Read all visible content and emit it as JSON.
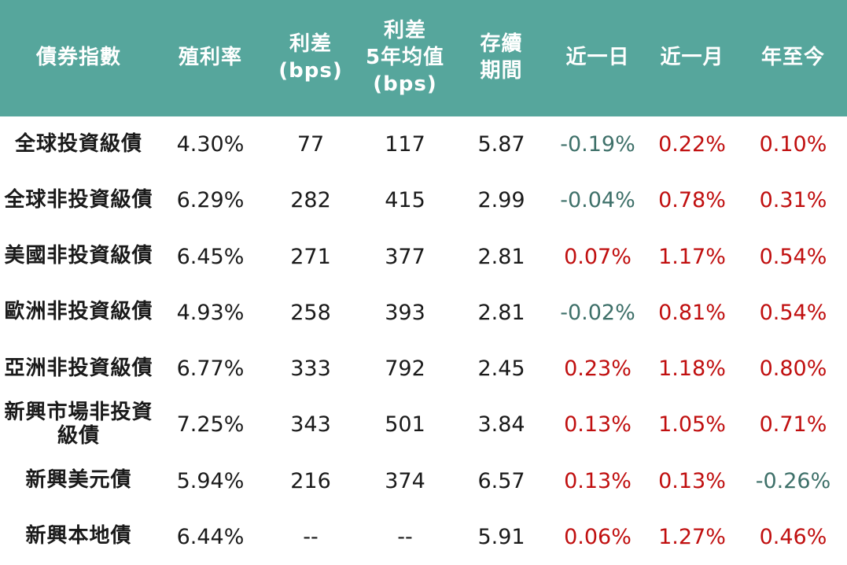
{
  "colors": {
    "header_bg": "#56a69c",
    "header_text": "#ffffff",
    "body_text": "#1a1a1a",
    "positive": "#c00f0f",
    "negative": "#3e7069"
  },
  "chart_data": {
    "type": "table",
    "title": "",
    "columns": [
      {
        "id": "index_name",
        "label_lines": [
          "債券指數"
        ]
      },
      {
        "id": "yield",
        "label_lines": [
          "殖利率"
        ]
      },
      {
        "id": "spread_bps",
        "label_lines": [
          "利差",
          "(bps)"
        ]
      },
      {
        "id": "spread_5y_avg_bps",
        "label_lines": [
          "利差",
          "5年均值",
          "(bps)"
        ]
      },
      {
        "id": "duration",
        "label_lines": [
          "存續",
          "期間"
        ]
      },
      {
        "id": "chg_1d",
        "label_lines": [
          "近一日"
        ]
      },
      {
        "id": "chg_1m",
        "label_lines": [
          "近一月"
        ]
      },
      {
        "id": "chg_ytd",
        "label_lines": [
          "年至今"
        ]
      }
    ],
    "change_column_ids": [
      "chg_1d",
      "chg_1m",
      "chg_ytd"
    ],
    "rows": [
      {
        "index_name": "全球投資級債",
        "yield": "4.30%",
        "spread_bps": "77",
        "spread_5y_avg_bps": "117",
        "duration": "5.87",
        "chg_1d": "-0.19%",
        "chg_1m": "0.22%",
        "chg_ytd": "0.10%"
      },
      {
        "index_name": "全球非投資級債",
        "yield": "6.29%",
        "spread_bps": "282",
        "spread_5y_avg_bps": "415",
        "duration": "2.99",
        "chg_1d": "-0.04%",
        "chg_1m": "0.78%",
        "chg_ytd": "0.31%"
      },
      {
        "index_name": "美國非投資級債",
        "yield": "6.45%",
        "spread_bps": "271",
        "spread_5y_avg_bps": "377",
        "duration": "2.81",
        "chg_1d": "0.07%",
        "chg_1m": "1.17%",
        "chg_ytd": "0.54%"
      },
      {
        "index_name": "歐洲非投資級債",
        "yield": "4.93%",
        "spread_bps": "258",
        "spread_5y_avg_bps": "393",
        "duration": "2.81",
        "chg_1d": "-0.02%",
        "chg_1m": "0.81%",
        "chg_ytd": "0.54%"
      },
      {
        "index_name": "亞洲非投資級債",
        "yield": "6.77%",
        "spread_bps": "333",
        "spread_5y_avg_bps": "792",
        "duration": "2.45",
        "chg_1d": "0.23%",
        "chg_1m": "1.18%",
        "chg_ytd": "0.80%"
      },
      {
        "index_name": "新興市場非投資\n級債",
        "yield": "7.25%",
        "spread_bps": "343",
        "spread_5y_avg_bps": "501",
        "duration": "3.84",
        "chg_1d": "0.13%",
        "chg_1m": "1.05%",
        "chg_ytd": "0.71%"
      },
      {
        "index_name": "新興美元債",
        "yield": "5.94%",
        "spread_bps": "216",
        "spread_5y_avg_bps": "374",
        "duration": "6.57",
        "chg_1d": "0.13%",
        "chg_1m": "0.13%",
        "chg_ytd": "-0.26%"
      },
      {
        "index_name": "新興本地債",
        "yield": "6.44%",
        "spread_bps": "--",
        "spread_5y_avg_bps": "--",
        "duration": "5.91",
        "chg_1d": "0.06%",
        "chg_1m": "1.27%",
        "chg_ytd": "0.46%"
      }
    ]
  }
}
